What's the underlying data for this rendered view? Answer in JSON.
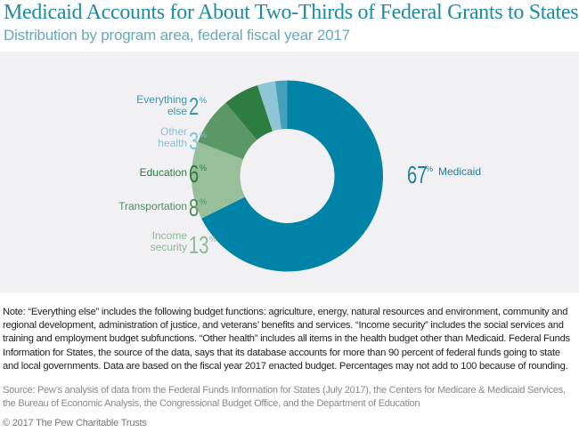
{
  "header": {
    "title": "Medicaid Accounts for About Two-Thirds of Federal Grants to States",
    "subtitle": "Distribution by program area, federal fiscal year 2017"
  },
  "chart_data": {
    "type": "pie",
    "variant": "donut",
    "title": "Medicaid Accounts for About Two-Thirds of Federal Grants to States",
    "subtitle": "Distribution by program area, federal fiscal year 2017",
    "unit": "%",
    "start": "12 o'clock",
    "direction": "clockwise",
    "slices": [
      {
        "key": "medicaid",
        "label": "Medicaid",
        "value": 67,
        "color": "#0083a6",
        "label_color": "#1f7fa3"
      },
      {
        "key": "income_security",
        "label": "Income security",
        "value": 13,
        "color": "#96bf9a",
        "label_color": "#8fb895"
      },
      {
        "key": "transportation",
        "label": "Transportation",
        "value": 8,
        "color": "#5a9868",
        "label_color": "#4f8d5d"
      },
      {
        "key": "education",
        "label": "Education",
        "value": 6,
        "color": "#2e7d40",
        "label_color": "#2b7a3d"
      },
      {
        "key": "other_health",
        "label": "Other health",
        "value": 3,
        "color": "#8ec6d6",
        "label_color": "#8dc0d2"
      },
      {
        "key": "everything_else",
        "label": "Everything else",
        "value": 2,
        "color": "#46a0ba",
        "label_color": "#3b97b3"
      }
    ],
    "display_labels": {
      "medicaid": {
        "num": "67",
        "sign": "%",
        "lines": [
          "Medicaid"
        ]
      },
      "income_security": {
        "num": "13",
        "sign": "%",
        "lines": [
          "Income",
          "security"
        ]
      },
      "transportation": {
        "num": "8",
        "sign": "%",
        "lines": [
          "Transportation"
        ]
      },
      "education": {
        "num": "6",
        "sign": "%",
        "lines": [
          "Education"
        ]
      },
      "other_health": {
        "num": "3",
        "sign": "%",
        "lines": [
          "Other",
          "health"
        ]
      },
      "everything_else": {
        "num": "2",
        "sign": "%",
        "lines": [
          "Everything",
          "else"
        ]
      }
    }
  },
  "footer": {
    "note": "Note: “Everything else” includes the following budget functions: agriculture, energy, natural resources and environment, community and regional development, administration of justice, and veterans’ benefits and services. “Income security” includes the social services and training and employment budget subfunctions. “Other health” includes all items in the health budget other than Medicaid. Federal Funds Information for States, the source of the data, says that its database accounts for more than 90 percent of federal funds going to state and local governments. Data are based on the fiscal year 2017 enacted budget. Percentages may not add to 100 because of rounding.",
    "source": "Source: Pew’s analysis of data from the Federal Funds Information for States (July 2017), the Centers for Medicare & Medicaid Services, the Bureau of Economic Analysis, the Congressional Budget Office, and the Department of Education",
    "copyright": "© 2017 The Pew Charitable Trusts"
  }
}
